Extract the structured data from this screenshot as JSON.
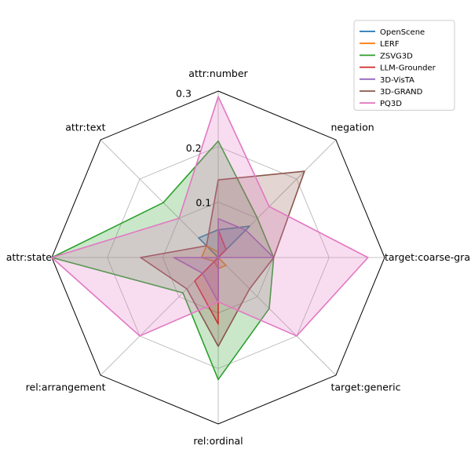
{
  "chart_data": {
    "type": "radar",
    "title": "",
    "categories": [
      "attr:number",
      "negation",
      "target:coarse-grained",
      "target:generic",
      "rel:ordinal",
      "rel:arrangement",
      "attr:state",
      "attr:text"
    ],
    "rlim": [
      0,
      0.3
    ],
    "r_ticks": [
      0.1,
      0.2,
      0.3
    ],
    "r_tick_labels": [
      "0.1",
      "0.2",
      "0.3"
    ],
    "grid": true,
    "legend_position": "top-right",
    "series": [
      {
        "name": "OpenScene",
        "color": "#1f77b4",
        "values": [
          0.05,
          0.08,
          0.0,
          0.0,
          0.0,
          0.0,
          0.0,
          0.05
        ]
      },
      {
        "name": "LERF",
        "color": "#ff7f0e",
        "values": [
          0.01,
          0.0,
          0.0,
          0.02,
          0.02,
          0.01,
          0.03,
          0.03
        ]
      },
      {
        "name": "ZSVG3D",
        "color": "#2ca02c",
        "values": [
          0.21,
          0.1,
          0.1,
          0.13,
          0.22,
          0.09,
          0.3,
          0.14
        ]
      },
      {
        "name": "LLM-Grounder",
        "color": "#d62728",
        "values": [
          0.05,
          0.02,
          0.0,
          0.0,
          0.12,
          0.06,
          0.0,
          0.0
        ]
      },
      {
        "name": "3D-VisTA",
        "color": "#9467bd",
        "values": [
          0.07,
          0.07,
          0.1,
          0.0,
          0.08,
          0.04,
          0.08,
          0.0
        ]
      },
      {
        "name": "3D-GRAND",
        "color": "#8c564b",
        "values": [
          0.14,
          0.22,
          0.1,
          0.08,
          0.16,
          0.08,
          0.14,
          0.03
        ]
      },
      {
        "name": "PQ3D",
        "color": "#e377c2",
        "values": [
          0.29,
          0.13,
          0.27,
          0.2,
          0.08,
          0.2,
          0.3,
          0.1
        ]
      }
    ]
  }
}
